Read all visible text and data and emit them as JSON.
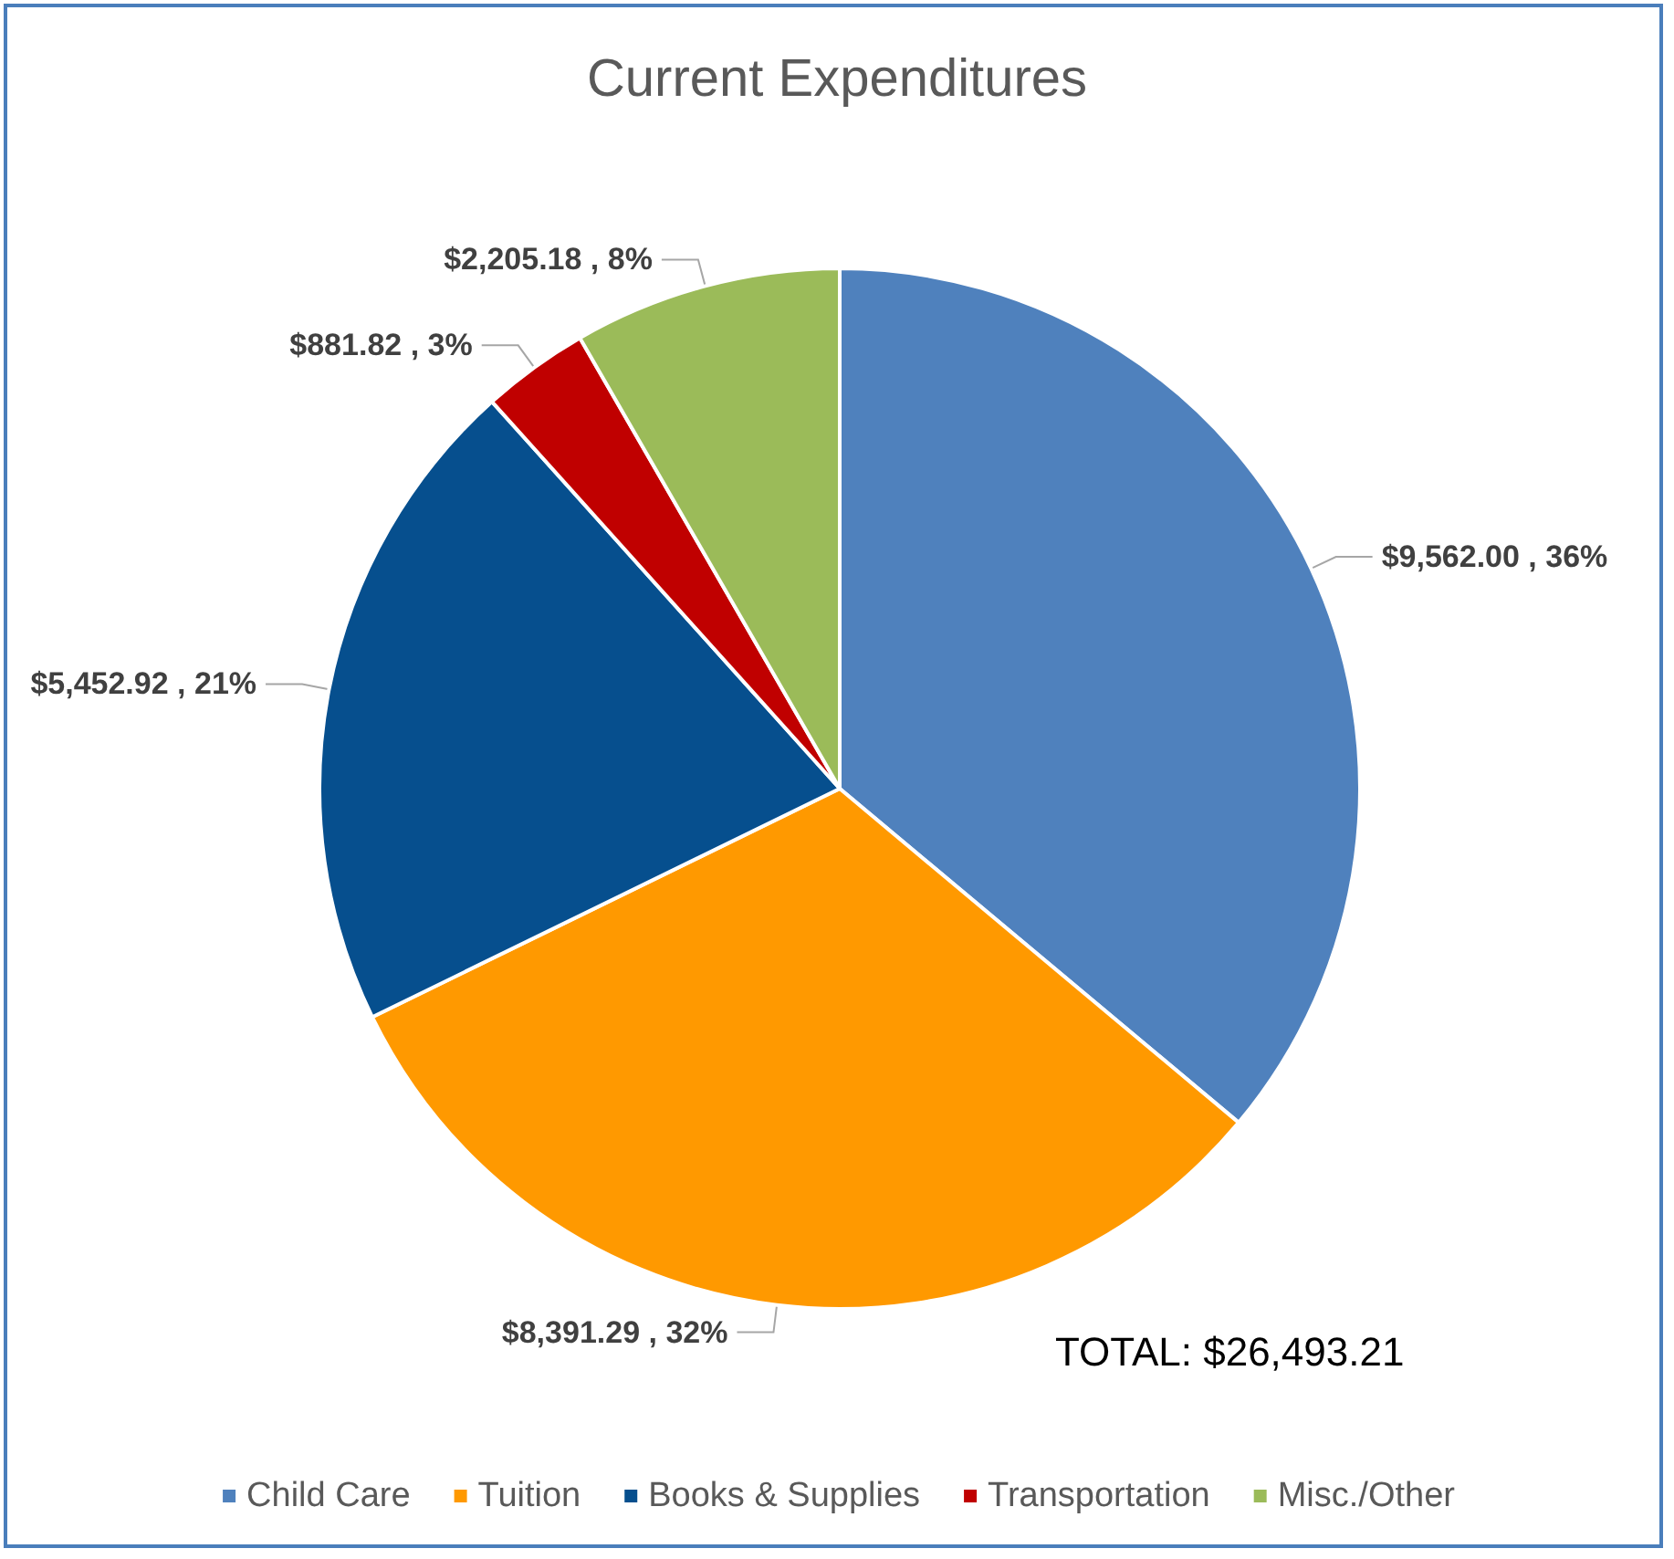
{
  "chart_data": {
    "type": "pie",
    "title": "Current Expenditures",
    "categories": [
      "Child Care",
      "Tuition",
      "Books & Supplies",
      "Transportation",
      "Misc./Other"
    ],
    "values": [
      9562.0,
      8391.29,
      5452.92,
      881.82,
      2205.18
    ],
    "colors": [
      "#4f81bd",
      "#ff9900",
      "#064f8e",
      "#c00000",
      "#9bbb59"
    ],
    "value_labels": [
      "$9,562.00 , 36%",
      "$8,391.29 , 32%",
      "$5,452.92 , 21%",
      "$881.82 , 3%",
      "$2,205.18 , 8%"
    ],
    "annotations": [
      "TOTAL: $26,493.21"
    ],
    "legend": "bottom"
  }
}
